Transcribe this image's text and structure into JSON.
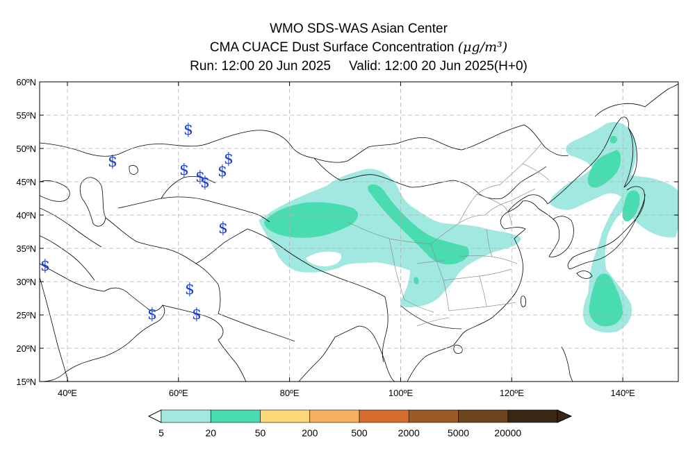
{
  "header": {
    "line1": "WMO SDS-WAS Asian Center",
    "line2": "CMA CUACE Dust Surface Concentration",
    "unit": "(μg/m³)",
    "run": "Run: 12:00 20 Jun 2025",
    "valid": "Valid: 12:00 20 Jun 2025(H+0)"
  },
  "map": {
    "lon_range": [
      35,
      150
    ],
    "lat_range": [
      15,
      60
    ],
    "lat_ticks": [
      "60ºN",
      "55ºN",
      "50ºN",
      "45ºN",
      "40ºN",
      "35ºN",
      "30ºN",
      "25ºN",
      "20ºN",
      "15ºN"
    ],
    "lon_ticks": [
      "40ºE",
      "60ºE",
      "80ºE",
      "100ºE",
      "120ºE",
      "140ºE"
    ],
    "grid": true,
    "storm_symbol": "$"
  },
  "colorbar": {
    "labels": [
      "5",
      "20",
      "50",
      "200",
      "500",
      "2000",
      "5000",
      "20000"
    ],
    "colors": [
      "#a0e8e0",
      "#48dcb0",
      "#fcd878",
      "#f4b05c",
      "#d86c2c",
      "#9c5a24",
      "#6c4420",
      "#3a2614"
    ]
  }
}
